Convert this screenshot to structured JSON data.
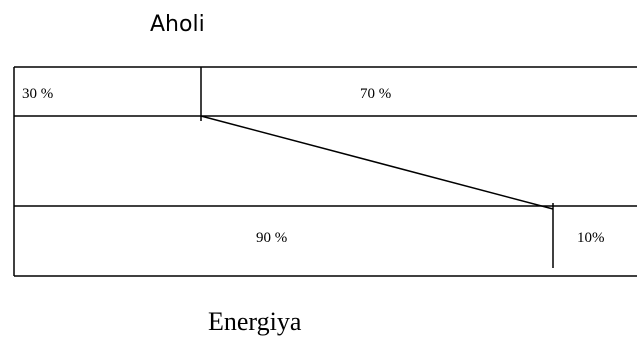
{
  "top": {
    "title": "Aholi",
    "left_share_label": "30 %",
    "right_share_label": "70 %",
    "left_share": 30,
    "right_share": 70
  },
  "bottom": {
    "title": "Energiya",
    "left_share_label": "90 %",
    "right_share_label": "10%",
    "left_share": 90,
    "right_share": 10
  },
  "colors": {
    "line": "#000000",
    "text": "#000000",
    "background": "#ffffff"
  }
}
